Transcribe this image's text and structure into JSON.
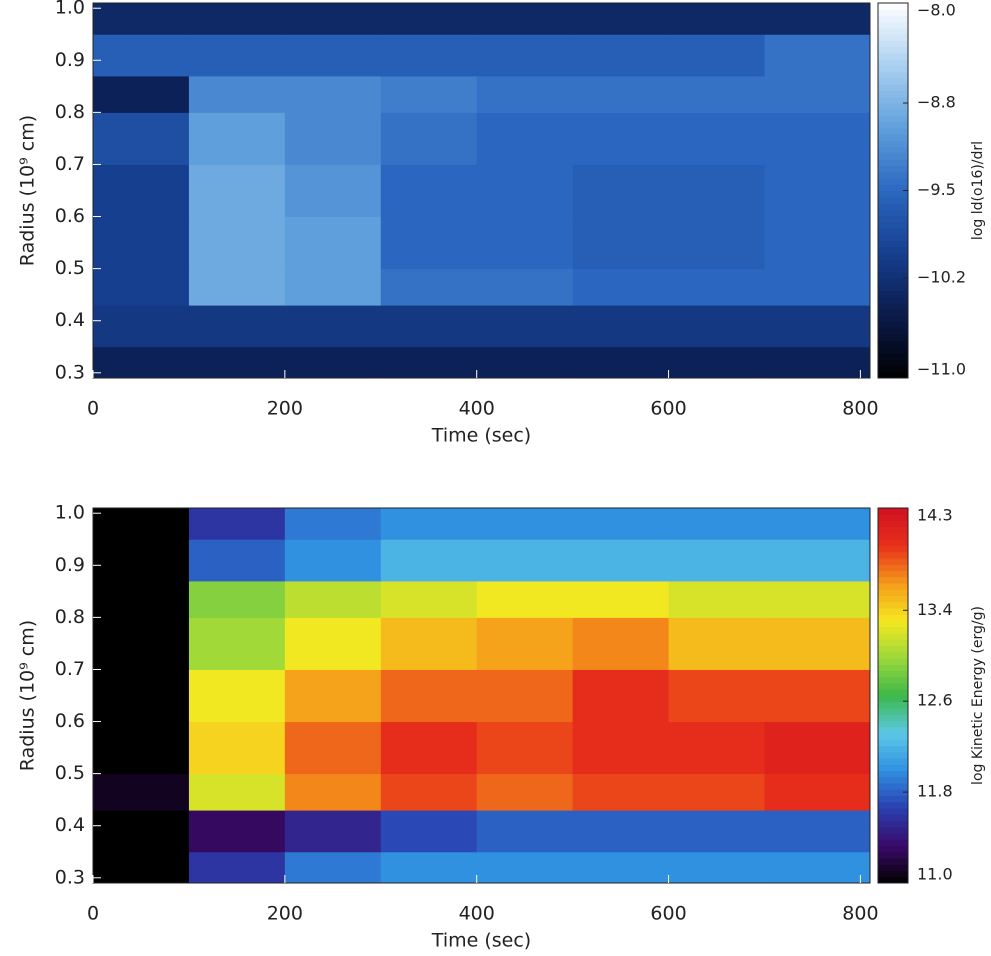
{
  "chart_data": [
    {
      "type": "heatmap",
      "x_label": "Time (sec)",
      "y_label": "Radius (10⁹ cm)",
      "colorbar_label": "log ld(o16)/drl",
      "xlim": [
        0,
        810
      ],
      "ylim": [
        0.29,
        1.01
      ],
      "xticks": [
        0,
        200,
        400,
        600,
        800
      ],
      "yticks": [
        0.3,
        0.4,
        0.5,
        0.6,
        0.7,
        0.8,
        0.9,
        {
          "value": 1,
          "label": "1.0"
        }
      ],
      "x_edges": [
        0,
        100,
        200,
        300,
        400,
        500,
        600,
        700,
        810
      ],
      "y_edges": [
        0.29,
        0.35,
        0.43,
        0.5,
        0.6,
        0.7,
        0.8,
        0.87,
        0.95,
        1.01
      ],
      "z": [
        [
          -10.4,
          -10.4,
          -10.4,
          -10.4,
          -10.4,
          -10.4,
          -10.4,
          -10.4
        ],
        [
          -10.1,
          -10.1,
          -10.1,
          -10.1,
          -10.1,
          -10.1,
          -10.1,
          -10.1
        ],
        [
          -10.0,
          -8.9,
          -9.0,
          -9.4,
          -9.4,
          -9.5,
          -9.5,
          -9.5
        ],
        [
          -10.0,
          -8.9,
          -9.0,
          -9.5,
          -9.5,
          -9.6,
          -9.6,
          -9.5
        ],
        [
          -10.0,
          -8.9,
          -9.1,
          -9.5,
          -9.5,
          -9.6,
          -9.6,
          -9.5
        ],
        [
          -9.8,
          -9.0,
          -9.2,
          -9.4,
          -9.5,
          -9.5,
          -9.5,
          -9.5
        ],
        [
          -10.4,
          -9.2,
          -9.2,
          -9.3,
          -9.4,
          -9.4,
          -9.4,
          -9.4
        ],
        [
          -9.6,
          -9.6,
          -9.6,
          -9.6,
          -9.6,
          -9.6,
          -9.6,
          -9.4
        ],
        [
          -10.3,
          -10.3,
          -10.3,
          -10.3,
          -10.3,
          -10.3,
          -10.3,
          -10.3
        ]
      ],
      "zlim": [
        -11,
        -8
      ],
      "cticks": [
        {
          "value": -8,
          "label": "−8.0"
        },
        {
          "value": -8.8,
          "label": "−8.8"
        },
        {
          "value": -9.5,
          "label": "−9.5"
        },
        {
          "value": -10.2,
          "label": "−10.2"
        },
        {
          "value": -11,
          "label": "−11.0"
        }
      ],
      "colormap": [
        "#000000",
        "#0a1a4a",
        "#163f8f",
        "#2b67c0",
        "#5f9fdc",
        "#a9d0f0",
        "#ffffff"
      ]
    },
    {
      "type": "heatmap",
      "x_label": "Time (sec)",
      "y_label": "Radius (10⁹ cm)",
      "colorbar_label": "log Kinetic Energy (erg/g)",
      "xlim": [
        0,
        810
      ],
      "ylim": [
        0.29,
        1.01
      ],
      "xticks": [
        0,
        200,
        400,
        600,
        800
      ],
      "yticks": [
        0.3,
        0.4,
        0.5,
        0.6,
        0.7,
        0.8,
        0.9,
        {
          "value": 1,
          "label": "1.0"
        }
      ],
      "x_edges": [
        0,
        100,
        200,
        300,
        400,
        500,
        600,
        700,
        810
      ],
      "y_edges": [
        0.29,
        0.35,
        0.43,
        0.5,
        0.6,
        0.7,
        0.8,
        0.87,
        0.95,
        1.01
      ],
      "z": [
        [
          11.0,
          11.6,
          11.9,
          12.0,
          12.0,
          12.0,
          12.0,
          12.0
        ],
        [
          11.0,
          11.3,
          11.5,
          11.7,
          11.8,
          11.8,
          11.8,
          11.8
        ],
        [
          11.1,
          13.2,
          13.7,
          13.9,
          13.8,
          13.9,
          13.9,
          14.0
        ],
        [
          11.0,
          13.4,
          13.8,
          14.0,
          13.9,
          14.0,
          14.0,
          14.1
        ],
        [
          11.0,
          13.3,
          13.6,
          13.8,
          13.8,
          14.0,
          13.9,
          13.9
        ],
        [
          11.0,
          13.0,
          13.3,
          13.5,
          13.6,
          13.7,
          13.5,
          13.5
        ],
        [
          11.0,
          12.9,
          13.1,
          13.2,
          13.3,
          13.3,
          13.2,
          13.2
        ],
        [
          11.0,
          11.8,
          12.0,
          12.2,
          12.2,
          12.2,
          12.2,
          12.2
        ],
        [
          11.0,
          11.6,
          11.9,
          12.0,
          12.0,
          12.0,
          12.0,
          12.0
        ]
      ],
      "zlim": [
        11,
        14.3
      ],
      "cticks": [
        {
          "value": 14.3,
          "label": "14.3"
        },
        13.4,
        12.6,
        11.8,
        {
          "value": 11,
          "label": "11.0"
        }
      ],
      "colormap": [
        "#000000",
        "#3a0a6a",
        "#2a3fb0",
        "#2f8fe0",
        "#5cc8e8",
        "#3cb84a",
        "#9bd83a",
        "#f5e820",
        "#f59a1a",
        "#e8301a",
        "#d01020"
      ]
    }
  ]
}
